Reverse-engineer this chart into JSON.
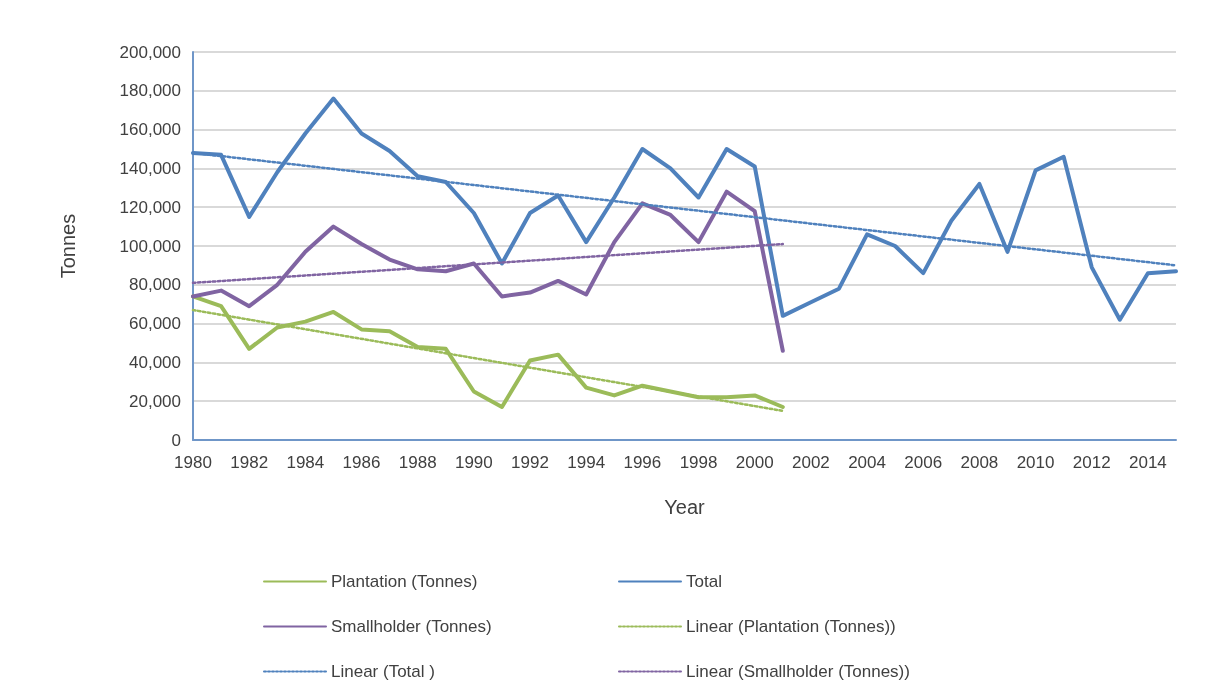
{
  "chart_data": {
    "type": "line",
    "xlabel": "Year",
    "ylabel": "Tonnes",
    "categories": [
      "1980",
      null,
      "1982",
      null,
      "1984",
      null,
      "1986",
      null,
      "1988",
      null,
      "1990",
      null,
      "1992",
      null,
      "1994",
      null,
      "1996",
      null,
      "1998",
      null,
      "2000",
      null,
      "2002",
      null,
      "2004",
      null,
      "2006",
      null,
      "2008",
      null,
      "2010",
      null,
      "2012",
      null,
      "2014",
      null
    ],
    "ylim": [
      0,
      200000
    ],
    "yticks": [
      0,
      {
        "value": 20000,
        "label": "20,000"
      },
      {
        "value": 40000,
        "label": "40,000"
      },
      {
        "value": 60000,
        "label": "60,000"
      },
      {
        "value": 80000,
        "label": "80,000"
      },
      {
        "value": 100000,
        "label": "100,000"
      },
      {
        "value": 120000,
        "label": "120,000"
      },
      {
        "value": 140000,
        "label": "140,000"
      },
      {
        "value": 160000,
        "label": "160,000"
      },
      {
        "value": 180000,
        "label": "180,000"
      },
      {
        "value": 200000,
        "label": "200,000"
      }
    ],
    "grid": "y",
    "legend": "bottom",
    "marker": "none",
    "series": [
      {
        "name": "Plantation (Tonnes)",
        "color": "#9bbb59",
        "line_style": "solid",
        "values": [
          74000,
          69000,
          47000,
          58000,
          61000,
          66000,
          57000,
          56000,
          48000,
          47000,
          25000,
          17000,
          41000,
          44000,
          27000,
          23000,
          28000,
          25000,
          22000,
          22000,
          23000,
          17000,
          null,
          null,
          null,
          null,
          null,
          null,
          null,
          null,
          null,
          null,
          null,
          null,
          null,
          null
        ]
      },
      {
        "name": "Total",
        "color": "#4f81bd",
        "line_style": "solid",
        "values": [
          148000,
          147000,
          115000,
          138000,
          158000,
          176000,
          158000,
          149000,
          136000,
          133000,
          117000,
          91000,
          117000,
          126000,
          102000,
          125000,
          150000,
          140000,
          125000,
          150000,
          141000,
          64000,
          71000,
          78000,
          106000,
          100000,
          86000,
          113000,
          132000,
          97000,
          139000,
          146000,
          89000,
          62000,
          86000,
          87000
        ]
      },
      {
        "name": "Smallholder (Tonnes)",
        "color": "#8064a2",
        "line_style": "solid",
        "values": [
          74000,
          77000,
          69000,
          80000,
          97000,
          110000,
          101000,
          93000,
          88000,
          87000,
          91000,
          74000,
          76000,
          82000,
          75000,
          102000,
          122000,
          116000,
          102000,
          128000,
          118000,
          46000,
          null,
          null,
          null,
          null,
          null,
          null,
          null,
          null,
          null,
          null,
          null,
          null,
          null,
          null
        ]
      },
      {
        "name": "Linear (Plantation (Tonnes))",
        "color": "#9bbb59",
        "line_style": "dotted",
        "values": [
          67000,
          null,
          null,
          null,
          null,
          null,
          null,
          null,
          null,
          null,
          null,
          null,
          null,
          null,
          null,
          null,
          null,
          null,
          null,
          null,
          null,
          15000,
          null,
          null,
          null,
          null,
          null,
          null,
          null,
          null,
          null,
          null,
          null,
          null,
          null,
          null
        ]
      },
      {
        "name": "Linear (Total )",
        "color": "#4f81bd",
        "line_style": "dotted",
        "values": [
          148000,
          null,
          null,
          null,
          null,
          null,
          null,
          null,
          null,
          null,
          null,
          null,
          null,
          null,
          null,
          null,
          null,
          null,
          null,
          null,
          null,
          null,
          null,
          null,
          null,
          null,
          null,
          null,
          null,
          null,
          null,
          null,
          null,
          null,
          null,
          90000
        ]
      },
      {
        "name": "Linear (Smallholder (Tonnes))",
        "color": "#8064a2",
        "line_style": "dotted",
        "values": [
          81000,
          null,
          null,
          null,
          null,
          null,
          null,
          null,
          null,
          null,
          null,
          null,
          null,
          null,
          null,
          null,
          null,
          null,
          null,
          null,
          null,
          101000,
          null,
          null,
          null,
          null,
          null,
          null,
          null,
          null,
          null,
          null,
          null,
          null,
          null,
          null
        ]
      }
    ]
  }
}
